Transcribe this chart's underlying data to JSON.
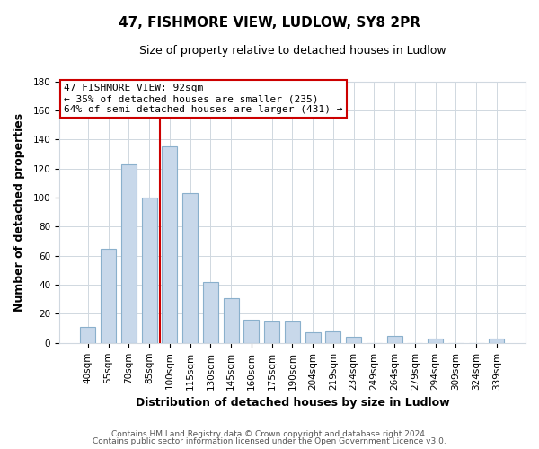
{
  "title": "47, FISHMORE VIEW, LUDLOW, SY8 2PR",
  "subtitle": "Size of property relative to detached houses in Ludlow",
  "xlabel": "Distribution of detached houses by size in Ludlow",
  "ylabel": "Number of detached properties",
  "bar_labels": [
    "40sqm",
    "55sqm",
    "70sqm",
    "85sqm",
    "100sqm",
    "115sqm",
    "130sqm",
    "145sqm",
    "160sqm",
    "175sqm",
    "190sqm",
    "204sqm",
    "219sqm",
    "234sqm",
    "249sqm",
    "264sqm",
    "279sqm",
    "294sqm",
    "309sqm",
    "324sqm",
    "339sqm"
  ],
  "bar_values": [
    11,
    65,
    123,
    100,
    135,
    103,
    42,
    31,
    16,
    15,
    15,
    7,
    8,
    4,
    0,
    5,
    0,
    3,
    0,
    0,
    3
  ],
  "bar_color": "#c8d8ea",
  "bar_edge_color": "#8ab0cc",
  "ylim": [
    0,
    180
  ],
  "yticks": [
    0,
    20,
    40,
    60,
    80,
    100,
    120,
    140,
    160,
    180
  ],
  "vline_color": "#cc0000",
  "annotation_title": "47 FISHMORE VIEW: 92sqm",
  "annotation_line1": "← 35% of detached houses are smaller (235)",
  "annotation_line2": "64% of semi-detached houses are larger (431) →",
  "footer1": "Contains HM Land Registry data © Crown copyright and database right 2024.",
  "footer2": "Contains public sector information licensed under the Open Government Licence v3.0.",
  "background_color": "#ffffff",
  "plot_bg_color": "#ffffff",
  "grid_color": "#d0d8e0",
  "title_fontsize": 11,
  "subtitle_fontsize": 9,
  "axis_label_fontsize": 9,
  "tick_fontsize": 7.5,
  "footer_fontsize": 6.5
}
